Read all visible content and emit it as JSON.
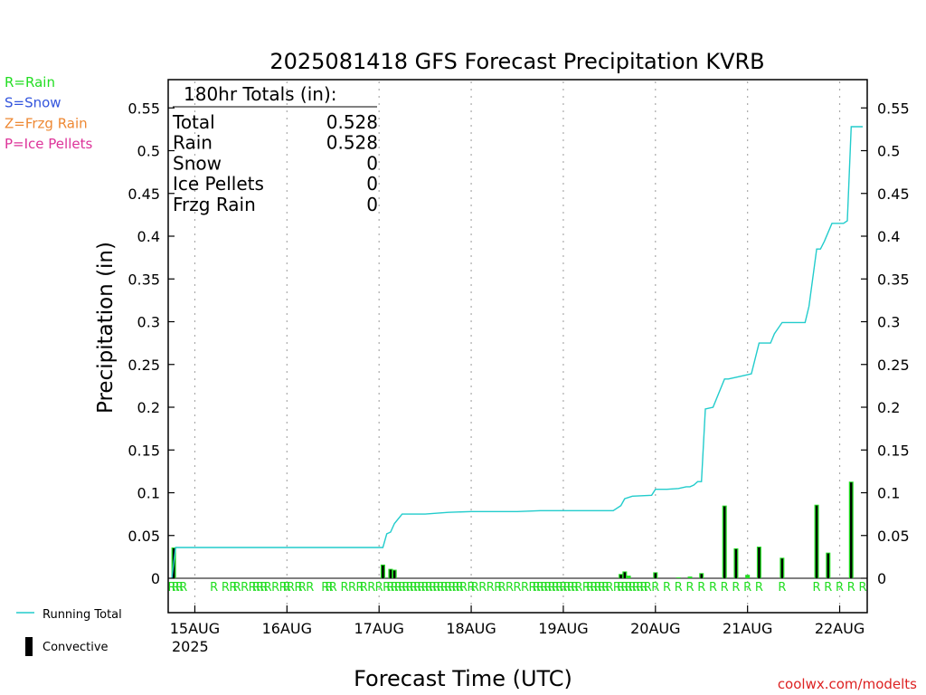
{
  "chart_data": {
    "type": "line",
    "title": "2025081418 GFS Forecast Precipitation KVRB",
    "xlabel": "Forecast Time (UTC)",
    "ylabel": "Precipitation (in)",
    "ylim": [
      -0.04,
      0.585
    ],
    "xlim_hours": [
      0,
      180
    ],
    "grid": "dotted vertical lines at 00 UTC",
    "yticks": [
      "0",
      "0.05",
      "0.1",
      "0.15",
      "0.2",
      "0.25",
      "0.3",
      "0.35",
      "0.4",
      "0.45",
      "0.5",
      "0.55"
    ],
    "xticks": [
      {
        "hour": 6,
        "label": "15AUG"
      },
      {
        "hour": 30,
        "label": "16AUG"
      },
      {
        "hour": 54,
        "label": "17AUG"
      },
      {
        "hour": 78,
        "label": "18AUG"
      },
      {
        "hour": 102,
        "label": "19AUG"
      },
      {
        "hour": 126,
        "label": "20AUG"
      },
      {
        "hour": 150,
        "label": "21AUG"
      },
      {
        "hour": 174,
        "label": "22AUG"
      }
    ],
    "year_label": "2025",
    "legend_precip_types": [
      {
        "text": "R=Rain",
        "color": "#22dd22"
      },
      {
        "text": "S=Snow",
        "color": "#3355dd"
      },
      {
        "text": "Z=Frzg Rain",
        "color": "#ee8833"
      },
      {
        "text": "P=Ice Pellets",
        "color": "#dd3399"
      }
    ],
    "legend_series": [
      {
        "name": "Running Total",
        "color": "#22cccc",
        "kind": "line"
      },
      {
        "name": "Convective",
        "color": "#000000",
        "kind": "bar"
      }
    ],
    "totals_box": {
      "header": "180hr Totals (in):",
      "rows": [
        {
          "label": "Total",
          "value": "0.528"
        },
        {
          "label": "Rain",
          "value": "0.528"
        },
        {
          "label": "Snow",
          "value": "0"
        },
        {
          "label": "Ice Pellets",
          "value": "0"
        },
        {
          "label": "Frzg Rain",
          "value": "0"
        }
      ]
    },
    "running_total": {
      "hours": [
        0,
        1,
        55,
        56,
        57,
        58,
        60,
        66,
        72,
        78,
        90,
        96,
        115,
        117,
        118,
        120,
        125,
        126,
        129,
        132,
        134,
        135,
        136,
        137,
        138,
        139,
        141,
        144,
        145,
        147,
        150,
        151,
        153,
        156,
        157,
        159,
        165,
        166,
        168,
        169,
        170,
        172,
        175,
        176,
        177,
        180
      ],
      "values": [
        0.0,
        0.036,
        0.036,
        0.052,
        0.054,
        0.064,
        0.075,
        0.075,
        0.077,
        0.078,
        0.078,
        0.079,
        0.079,
        0.085,
        0.093,
        0.096,
        0.097,
        0.104,
        0.104,
        0.105,
        0.107,
        0.107,
        0.109,
        0.113,
        0.113,
        0.198,
        0.2,
        0.233,
        0.233,
        0.235,
        0.238,
        0.239,
        0.275,
        0.275,
        0.286,
        0.299,
        0.299,
        0.318,
        0.385,
        0.385,
        0.394,
        0.415,
        0.415,
        0.418,
        0.528,
        0.528
      ]
    },
    "precip_bars": {
      "hours": [
        0.5,
        55,
        57,
        58,
        117,
        118,
        119,
        126,
        132,
        135,
        138,
        144,
        147,
        150,
        153,
        159,
        168,
        171,
        177
      ],
      "values": [
        0.036,
        0.016,
        0.011,
        0.01,
        0.005,
        0.008,
        0.003,
        0.007,
        0.001,
        0.002,
        0.006,
        0.085,
        0.035,
        0.004,
        0.037,
        0.024,
        0.086,
        0.03,
        0.113
      ]
    },
    "convective_bars": {
      "hours": [
        0.5,
        55,
        57,
        58,
        117,
        118,
        126,
        138,
        144,
        147,
        153,
        159,
        168,
        171,
        177
      ],
      "values": [
        0.035,
        0.015,
        0.01,
        0.009,
        0.004,
        0.007,
        0.006,
        0.005,
        0.084,
        0.034,
        0.036,
        0.023,
        0.085,
        0.029,
        0.112
      ]
    },
    "ptype_row": {
      "code": "R",
      "color": "#22dd22",
      "hours": [
        0,
        1,
        2,
        3,
        11,
        14,
        16,
        17,
        19,
        21,
        22,
        23,
        24,
        25,
        27,
        29,
        30,
        31,
        33,
        34,
        36,
        40,
        41,
        42,
        45,
        47,
        49,
        50,
        52,
        54,
        56,
        57,
        58,
        59,
        60,
        61,
        62,
        63,
        64,
        65,
        66,
        67,
        68,
        69,
        70,
        71,
        72,
        73,
        74,
        75,
        76,
        78,
        79,
        81,
        83,
        85,
        86,
        88,
        90,
        92,
        94,
        95,
        96,
        97,
        98,
        99,
        100,
        101,
        102,
        103,
        104,
        105,
        106,
        108,
        109,
        110,
        111,
        112,
        113,
        114,
        116,
        117,
        118,
        119,
        120,
        121,
        122,
        123,
        124,
        126,
        129,
        132,
        135,
        138,
        141,
        144,
        147,
        150,
        153,
        159,
        168,
        171,
        174,
        177,
        180
      ]
    },
    "watermark": "coolwx.com/modelts"
  }
}
